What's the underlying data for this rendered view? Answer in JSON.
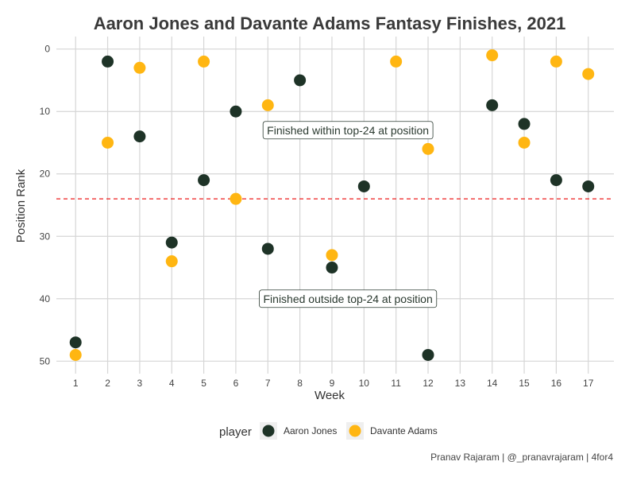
{
  "chart_data": {
    "type": "scatter",
    "title": "Aaron Jones and Davante Adams Fantasy Finishes, 2021",
    "xlabel": "Week",
    "ylabel": "Position Rank",
    "x_ticks": [
      1,
      2,
      3,
      4,
      5,
      6,
      7,
      8,
      9,
      10,
      11,
      12,
      13,
      14,
      15,
      16,
      17
    ],
    "y_ticks": [
      0,
      10,
      20,
      30,
      40,
      50
    ],
    "xlim": [
      0.4,
      17.8
    ],
    "ylim": [
      52,
      -2
    ],
    "y_reversed": true,
    "grid": true,
    "reference_line": {
      "y": 24,
      "style": "dashed",
      "color": "#ee1c1c"
    },
    "annotations": [
      {
        "text": "Finished within top-24 at position",
        "x": 9.5,
        "y": 13
      },
      {
        "text": "Finished outside top-24 at position",
        "x": 9.5,
        "y": 40
      }
    ],
    "legend": {
      "title": "player",
      "position": "bottom"
    },
    "series": [
      {
        "name": "Aaron Jones",
        "color": "#1e3327",
        "points": [
          {
            "x": 1,
            "y": 47
          },
          {
            "x": 2,
            "y": 2
          },
          {
            "x": 3,
            "y": 14
          },
          {
            "x": 4,
            "y": 31
          },
          {
            "x": 5,
            "y": 21
          },
          {
            "x": 6,
            "y": 10
          },
          {
            "x": 7,
            "y": 32
          },
          {
            "x": 8,
            "y": 5
          },
          {
            "x": 9,
            "y": 35
          },
          {
            "x": 10,
            "y": 22
          },
          {
            "x": 12,
            "y": 49
          },
          {
            "x": 14,
            "y": 9
          },
          {
            "x": 15,
            "y": 12
          },
          {
            "x": 16,
            "y": 21
          },
          {
            "x": 17,
            "y": 22
          }
        ]
      },
      {
        "name": "Davante Adams",
        "color": "#ffb612",
        "points": [
          {
            "x": 1,
            "y": 49
          },
          {
            "x": 2,
            "y": 15
          },
          {
            "x": 3,
            "y": 3
          },
          {
            "x": 4,
            "y": 34
          },
          {
            "x": 5,
            "y": 2
          },
          {
            "x": 6,
            "y": 24
          },
          {
            "x": 7,
            "y": 9
          },
          {
            "x": 9,
            "y": 33
          },
          {
            "x": 11,
            "y": 2
          },
          {
            "x": 12,
            "y": 16
          },
          {
            "x": 14,
            "y": 1
          },
          {
            "x": 15,
            "y": 15
          },
          {
            "x": 16,
            "y": 2
          },
          {
            "x": 17,
            "y": 4
          }
        ]
      }
    ],
    "caption": "Pranav Rajaram | @_pranavrajaram | 4for4"
  }
}
